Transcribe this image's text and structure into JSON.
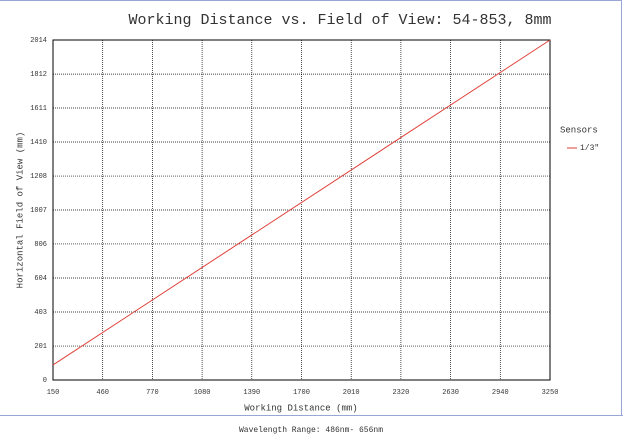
{
  "chart_data": {
    "type": "line",
    "title": "Working Distance vs. Field of View: 54-853, 8mm",
    "xlabel": "Working Distance (mm)",
    "ylabel": "Horizontal Field of View (mm)",
    "footer": "Wavelength Range:  486nm- 656nm",
    "legend_title": "Sensors",
    "legend": "right",
    "grid": true,
    "x": [
      150,
      3250
    ],
    "series": [
      {
        "name": "1/3\"",
        "color": "#e0413a",
        "values": [
          89,
          2014
        ]
      }
    ],
    "xlim": [
      150,
      3250
    ],
    "xticks": [
      150,
      460,
      770,
      1080,
      1390,
      1700,
      2010,
      2320,
      2630,
      2940,
      3250
    ],
    "ylim": [
      0,
      2014
    ],
    "yticks": [
      0,
      201,
      403,
      604,
      806,
      1007,
      1208,
      1410,
      1611,
      1812,
      2014
    ]
  }
}
